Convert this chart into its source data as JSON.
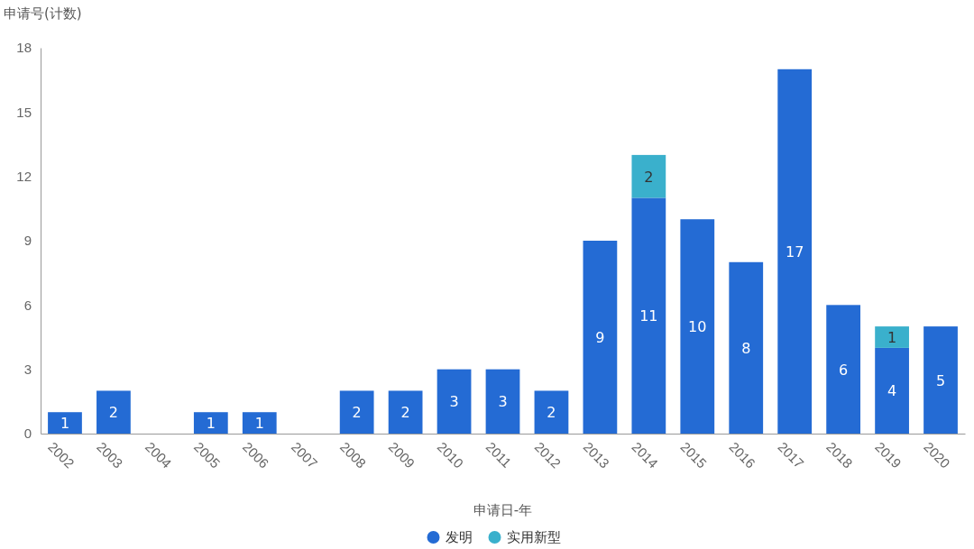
{
  "chart_data": {
    "type": "bar",
    "xlabel": "申请日-年",
    "ylabel": "申请号(计数)",
    "categories": [
      "2002",
      "2003",
      "2004",
      "2005",
      "2006",
      "2007",
      "2008",
      "2009",
      "2010",
      "2011",
      "2012",
      "2013",
      "2014",
      "2015",
      "2016",
      "2017",
      "2018",
      "2019",
      "2020"
    ],
    "series": [
      {
        "name": "发明",
        "color": "#246bd4",
        "values": [
          1,
          2,
          null,
          1,
          1,
          null,
          2,
          2,
          3,
          3,
          2,
          9,
          11,
          10,
          8,
          17,
          6,
          4,
          5
        ]
      },
      {
        "name": "实用新型",
        "color": "#3ab0cc",
        "values": [
          null,
          null,
          null,
          null,
          null,
          null,
          null,
          null,
          null,
          null,
          null,
          null,
          2,
          null,
          null,
          null,
          null,
          1,
          null
        ]
      }
    ],
    "stacked": true,
    "ylim": [
      0,
      18
    ],
    "yticks": [
      0,
      3,
      6,
      9,
      12,
      15,
      18
    ],
    "grid": false,
    "legend": "bottom",
    "data_labels": true
  }
}
